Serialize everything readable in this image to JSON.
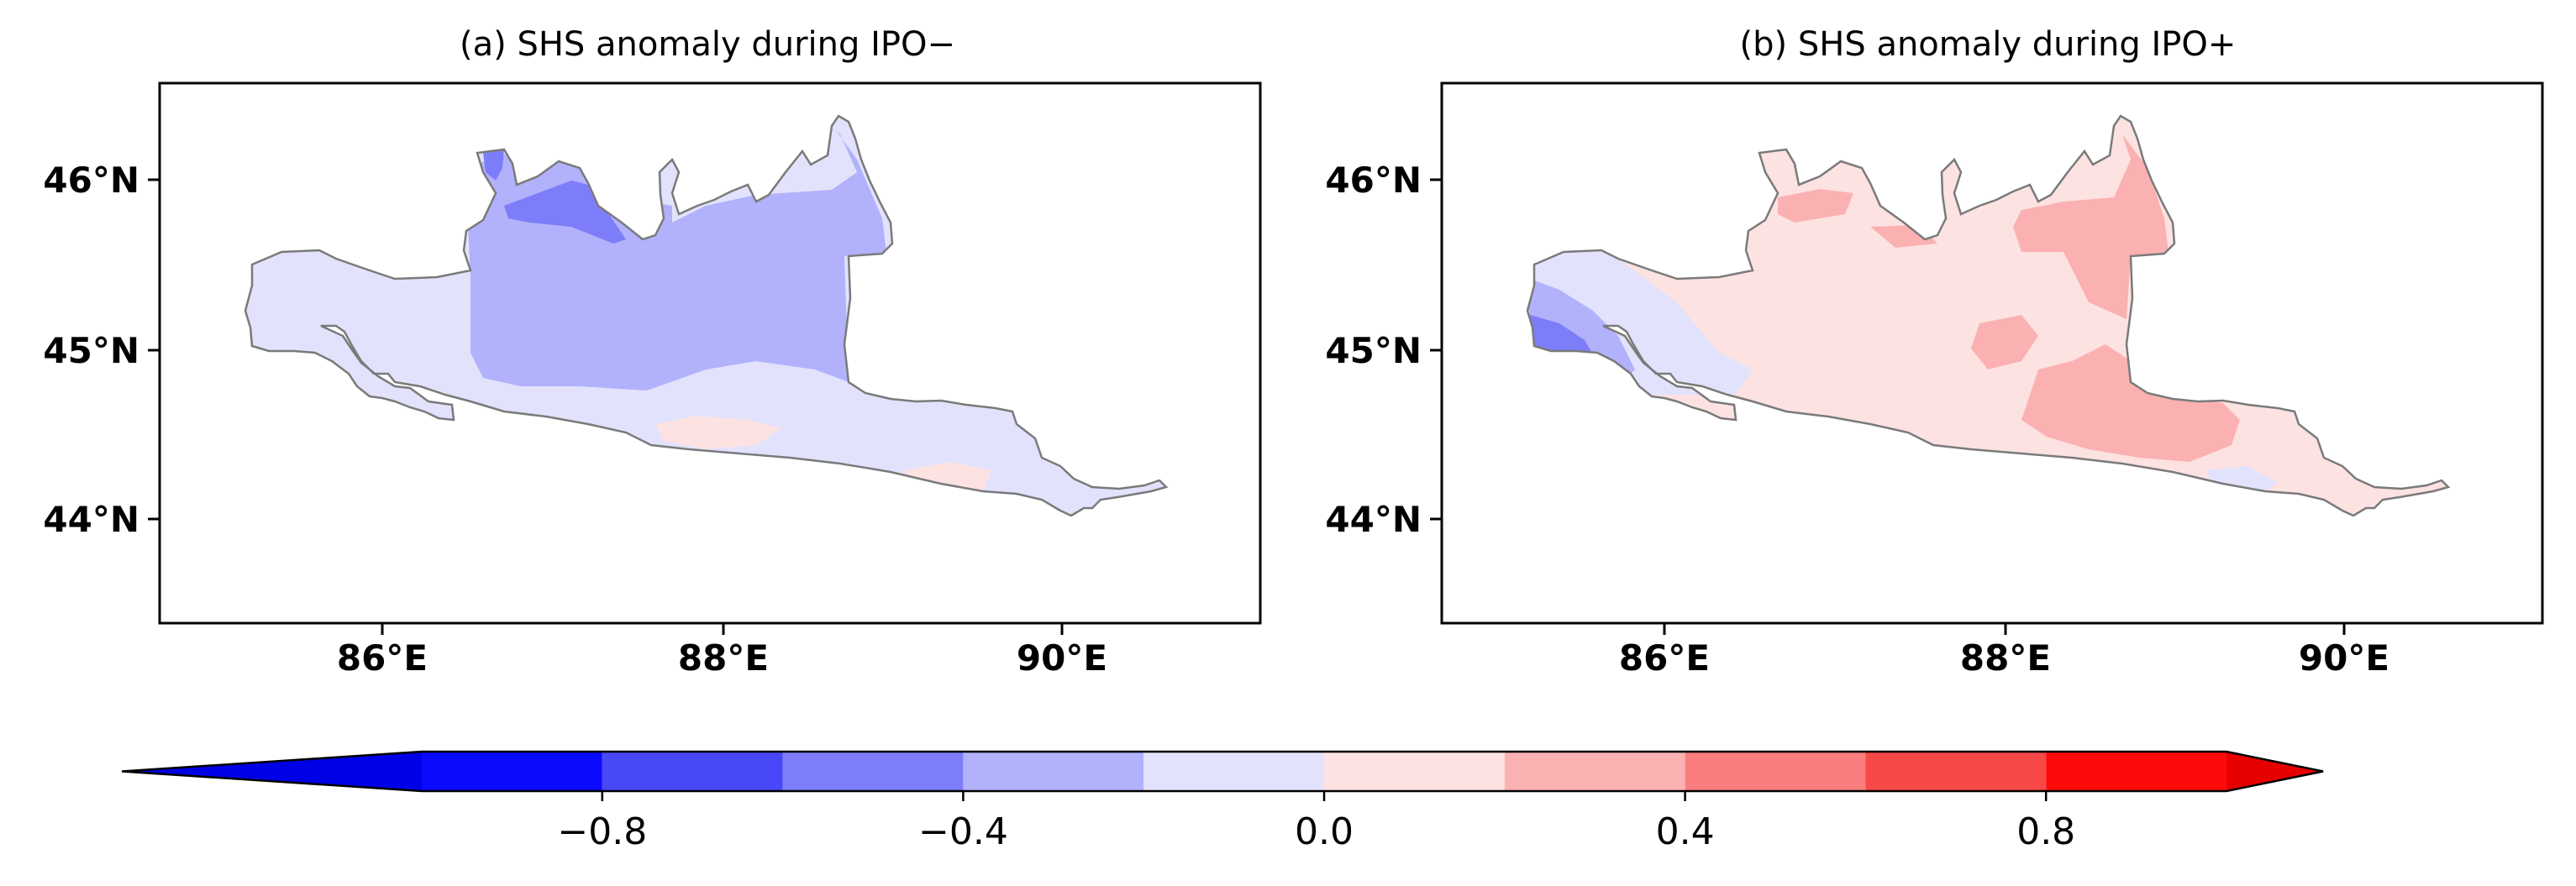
{
  "figure": {
    "panels": [
      {
        "id": "a",
        "title": "(a) SHS anomaly during IPO−"
      },
      {
        "id": "b",
        "title": "(b) SHS anomaly during IPO+"
      }
    ],
    "lat_ticks": [
      "46°N",
      "45°N",
      "44°N"
    ],
    "lon_ticks": [
      "86°E",
      "88°E",
      "90°E"
    ],
    "colorbar": {
      "bins": [
        {
          "min": -1.0,
          "max": -0.8,
          "color": "#0a0aff"
        },
        {
          "min": -0.8,
          "max": -0.6,
          "color": "#4848f8"
        },
        {
          "min": -0.6,
          "max": -0.4,
          "color": "#7d7dfa"
        },
        {
          "min": -0.4,
          "max": -0.2,
          "color": "#b1b1fc"
        },
        {
          "min": -0.2,
          "max": 0.0,
          "color": "#e2e2fc"
        },
        {
          "min": 0.0,
          "max": 0.2,
          "color": "#fde2e2"
        },
        {
          "min": 0.2,
          "max": 0.4,
          "color": "#fbb1b1"
        },
        {
          "min": 0.4,
          "max": 0.6,
          "color": "#fa7d7d"
        },
        {
          "min": 0.6,
          "max": 0.8,
          "color": "#f84848"
        },
        {
          "min": 0.8,
          "max": 1.0,
          "color": "#ff0a0a"
        }
      ],
      "under_color": "#0000e6",
      "over_color": "#e60000",
      "tick_values": [
        -0.8,
        -0.4,
        0.0,
        0.4,
        0.8
      ],
      "tick_labels": [
        "−0.8",
        "−0.4",
        "0.0",
        "0.4",
        "0.8"
      ]
    }
  }
}
